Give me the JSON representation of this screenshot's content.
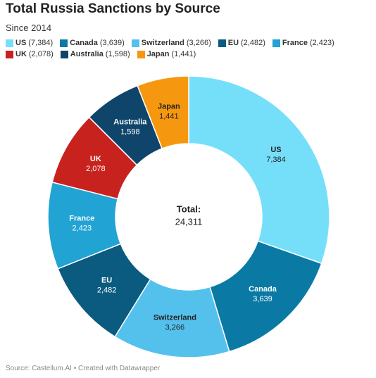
{
  "chart_data": {
    "type": "donut",
    "title": "Total Russia Sanctions by Source",
    "subtitle": "Since 2014",
    "categories": [
      "US",
      "Canada",
      "Switzerland",
      "EU",
      "France",
      "UK",
      "Australia",
      "Japan"
    ],
    "values": [
      7384,
      3639,
      3266,
      2482,
      2423,
      2078,
      1598,
      1441
    ],
    "value_labels": [
      "7,384",
      "3,639",
      "3,266",
      "2,482",
      "2,423",
      "2,078",
      "1,598",
      "1,441"
    ],
    "legend_labels": [
      "(7,384)",
      "(3,639)",
      "(3,266)",
      "(2,482)",
      "(2,423)",
      "(2,078)",
      "(1,598)",
      "(1,441)"
    ],
    "colors": [
      "#75dffa",
      "#0a7aa5",
      "#54c1ed",
      "#0b5a80",
      "#21a3d3",
      "#c8221f",
      "#0f456b",
      "#f5980f"
    ],
    "total_label": "Total:",
    "total": {
      "value": 24311,
      "label": "24,311"
    },
    "source": "Source: Castellum.AI • Created with Datawrapper"
  }
}
